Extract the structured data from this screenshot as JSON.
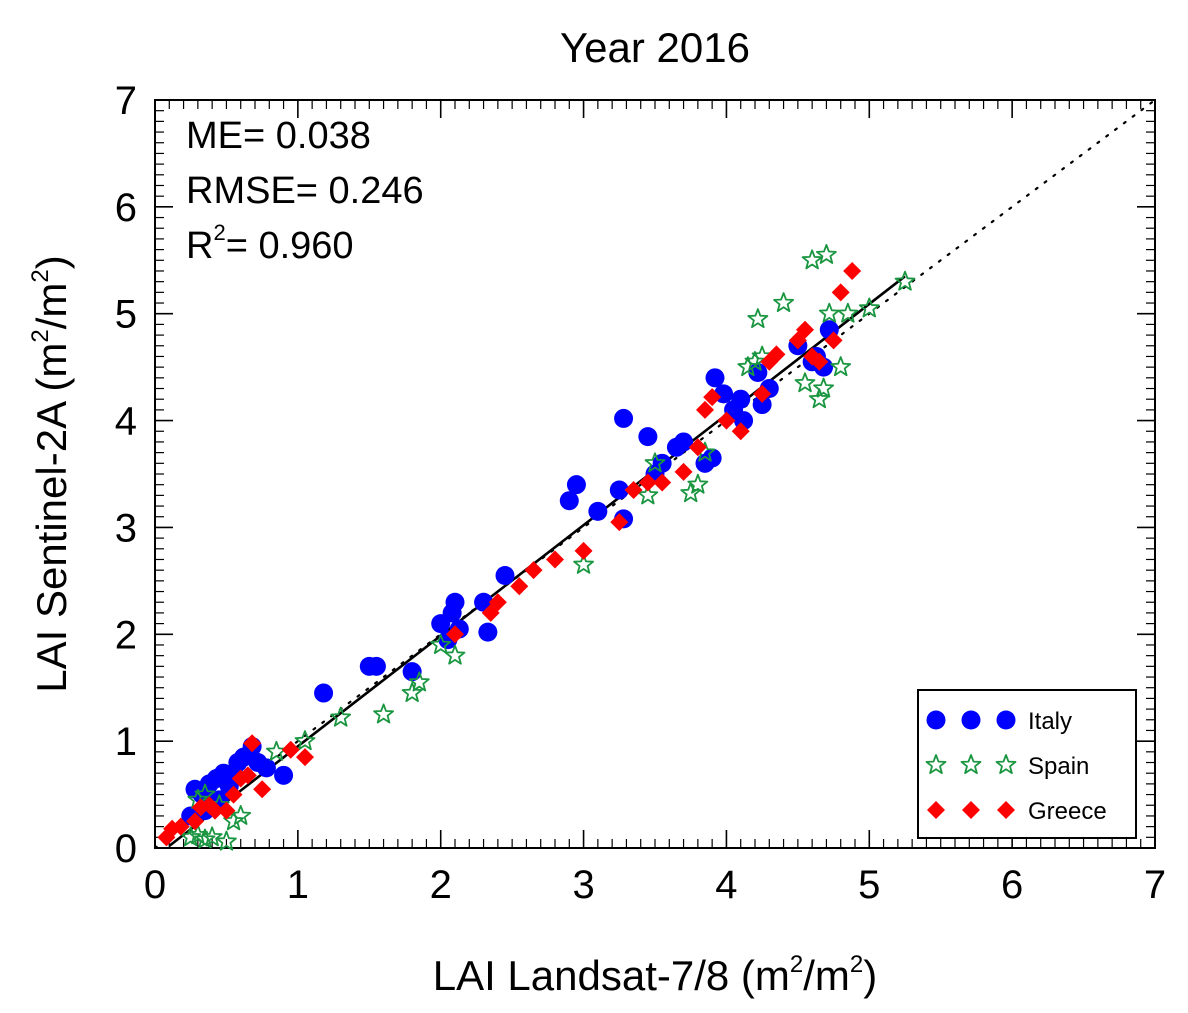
{
  "chart_data": {
    "type": "scatter",
    "title": "Year 2016",
    "xlabel": {
      "base": "LAI Landsat-7/8 (m",
      "sup1": "2",
      "mid": "/m",
      "sup2": "2",
      "end": ")"
    },
    "ylabel": {
      "base": "LAI Sentinel-2A (m",
      "sup1": "2",
      "mid": "/m",
      "sup2": "2",
      "end": ")"
    },
    "xlim": [
      0,
      7
    ],
    "ylim": [
      0,
      7
    ],
    "xticks": [
      "0",
      "1",
      "2",
      "3",
      "4",
      "5",
      "6",
      "7"
    ],
    "yticks": [
      "0",
      "1",
      "2",
      "3",
      "4",
      "5",
      "6",
      "7"
    ],
    "grid": false,
    "stats": {
      "me": "ME= 0.038",
      "rmse": "RMSE= 0.246",
      "r2_base": "R",
      "r2_sup": "2",
      "r2_value": "= 0.960"
    },
    "identity_line": {
      "style": "dotted",
      "from": [
        0,
        0
      ],
      "to": [
        7,
        7
      ]
    },
    "regression_line": {
      "from": [
        0.1,
        0.02
      ],
      "to": [
        5.25,
        5.35
      ]
    },
    "legend_position": "bottom-right",
    "series": [
      {
        "name": "Italy",
        "marker": "circle",
        "color": "#0000ff",
        "points": [
          [
            0.28,
            0.55
          ],
          [
            0.33,
            0.5
          ],
          [
            0.38,
            0.6
          ],
          [
            0.43,
            0.65
          ],
          [
            0.48,
            0.7
          ],
          [
            0.52,
            0.58
          ],
          [
            0.58,
            0.8
          ],
          [
            0.62,
            0.85
          ],
          [
            0.68,
            0.95
          ],
          [
            0.72,
            0.8
          ],
          [
            0.78,
            0.75
          ],
          [
            0.9,
            0.68
          ],
          [
            1.18,
            1.45
          ],
          [
            1.5,
            1.7
          ],
          [
            1.55,
            1.7
          ],
          [
            1.8,
            1.65
          ],
          [
            2.0,
            2.1
          ],
          [
            2.05,
            1.95
          ],
          [
            2.08,
            2.2
          ],
          [
            2.1,
            2.3
          ],
          [
            2.13,
            2.05
          ],
          [
            2.3,
            2.3
          ],
          [
            2.33,
            2.02
          ],
          [
            2.45,
            2.55
          ],
          [
            2.9,
            3.25
          ],
          [
            2.95,
            3.4
          ],
          [
            3.1,
            3.15
          ],
          [
            3.25,
            3.35
          ],
          [
            3.28,
            3.08
          ],
          [
            3.28,
            4.02
          ],
          [
            3.45,
            3.85
          ],
          [
            3.5,
            3.5
          ],
          [
            3.55,
            3.6
          ],
          [
            3.65,
            3.75
          ],
          [
            3.7,
            3.8
          ],
          [
            3.85,
            3.6
          ],
          [
            3.9,
            3.65
          ],
          [
            3.92,
            4.4
          ],
          [
            3.98,
            4.25
          ],
          [
            4.05,
            4.1
          ],
          [
            4.1,
            4.2
          ],
          [
            4.12,
            4.0
          ],
          [
            4.22,
            4.45
          ],
          [
            4.25,
            4.15
          ],
          [
            4.3,
            4.3
          ],
          [
            4.5,
            4.7
          ],
          [
            4.6,
            4.55
          ],
          [
            4.63,
            4.6
          ],
          [
            4.68,
            4.5
          ],
          [
            4.72,
            4.85
          ],
          [
            0.25,
            0.3
          ],
          [
            0.35,
            0.35
          ],
          [
            0.45,
            0.45
          ],
          [
            0.55,
            0.7
          ]
        ]
      },
      {
        "name": "Spain",
        "marker": "star",
        "color": "#1a9641",
        "points": [
          [
            0.25,
            0.1
          ],
          [
            0.3,
            0.12
          ],
          [
            0.35,
            0.08
          ],
          [
            0.4,
            0.1
          ],
          [
            0.45,
            0.4
          ],
          [
            0.5,
            0.06
          ],
          [
            0.55,
            0.25
          ],
          [
            0.6,
            0.3
          ],
          [
            0.85,
            0.9
          ],
          [
            1.05,
            1.0
          ],
          [
            1.3,
            1.22
          ],
          [
            1.6,
            1.25
          ],
          [
            1.8,
            1.45
          ],
          [
            1.85,
            1.55
          ],
          [
            2.0,
            1.9
          ],
          [
            2.1,
            1.8
          ],
          [
            3.0,
            2.65
          ],
          [
            3.45,
            3.3
          ],
          [
            3.5,
            3.6
          ],
          [
            3.75,
            3.32
          ],
          [
            3.8,
            3.4
          ],
          [
            3.85,
            3.7
          ],
          [
            4.15,
            4.5
          ],
          [
            4.2,
            4.55
          ],
          [
            4.22,
            4.95
          ],
          [
            4.25,
            4.6
          ],
          [
            4.4,
            5.1
          ],
          [
            4.55,
            4.35
          ],
          [
            4.6,
            5.5
          ],
          [
            4.65,
            4.2
          ],
          [
            4.68,
            4.3
          ],
          [
            4.7,
            5.55
          ],
          [
            4.72,
            5.0
          ],
          [
            4.8,
            4.5
          ],
          [
            4.85,
            5.0
          ],
          [
            5.0,
            5.05
          ],
          [
            5.25,
            5.3
          ],
          [
            0.3,
            0.45
          ],
          [
            0.35,
            0.5
          ]
        ]
      },
      {
        "name": "Greece",
        "marker": "diamond",
        "color": "#ff0000",
        "points": [
          [
            0.08,
            0.1
          ],
          [
            0.12,
            0.18
          ],
          [
            0.18,
            0.2
          ],
          [
            0.28,
            0.25
          ],
          [
            0.32,
            0.38
          ],
          [
            0.38,
            0.4
          ],
          [
            0.42,
            0.35
          ],
          [
            0.5,
            0.35
          ],
          [
            0.55,
            0.5
          ],
          [
            0.6,
            0.65
          ],
          [
            0.65,
            0.68
          ],
          [
            0.68,
            0.98
          ],
          [
            0.75,
            0.55
          ],
          [
            0.95,
            0.92
          ],
          [
            1.05,
            0.85
          ],
          [
            2.1,
            2.0
          ],
          [
            2.35,
            2.2
          ],
          [
            2.4,
            2.3
          ],
          [
            2.55,
            2.45
          ],
          [
            2.65,
            2.6
          ],
          [
            2.8,
            2.7
          ],
          [
            3.0,
            2.78
          ],
          [
            3.25,
            3.05
          ],
          [
            3.35,
            3.35
          ],
          [
            3.45,
            3.42
          ],
          [
            3.55,
            3.42
          ],
          [
            3.7,
            3.52
          ],
          [
            3.8,
            3.75
          ],
          [
            3.85,
            4.1
          ],
          [
            3.9,
            4.22
          ],
          [
            4.0,
            4.0
          ],
          [
            4.1,
            3.9
          ],
          [
            4.3,
            4.55
          ],
          [
            4.35,
            4.62
          ],
          [
            4.5,
            4.75
          ],
          [
            4.55,
            4.85
          ],
          [
            4.6,
            4.6
          ],
          [
            4.75,
            4.75
          ],
          [
            4.8,
            5.2
          ],
          [
            4.88,
            5.4
          ],
          [
            4.65,
            4.55
          ],
          [
            4.25,
            4.25
          ]
        ]
      }
    ]
  }
}
